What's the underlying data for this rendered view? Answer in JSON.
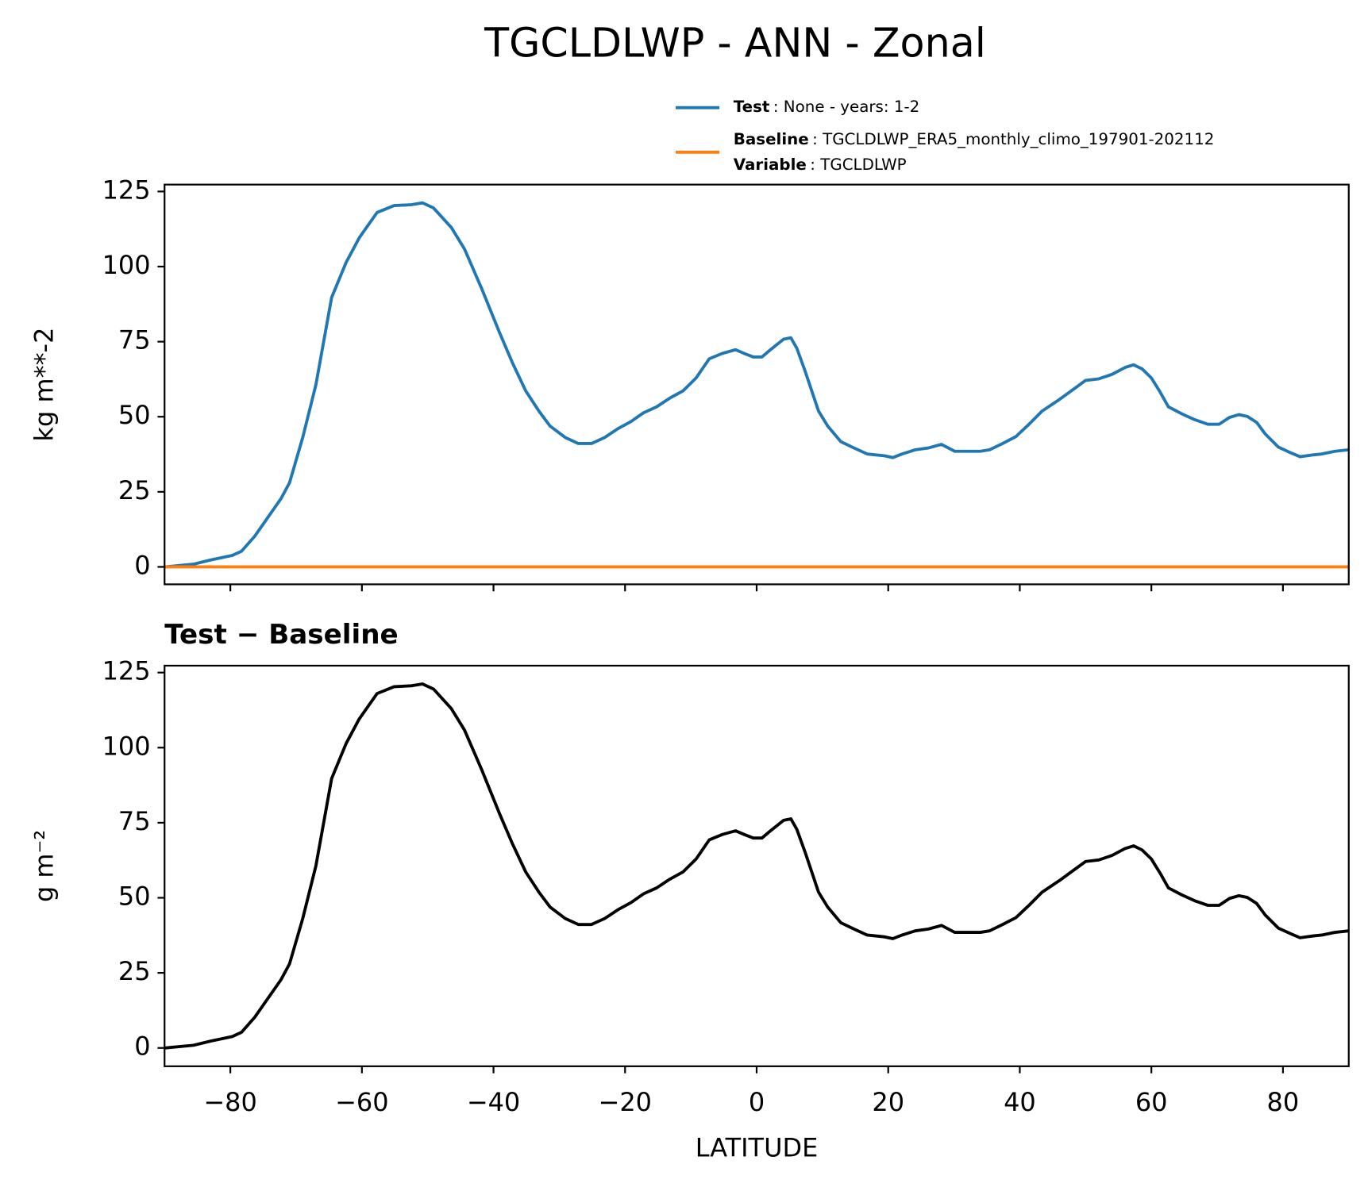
{
  "chart_data": [
    {
      "type": "line",
      "title": "TGCLDLWP - ANN - Zonal",
      "ylabel": "kg m**-2",
      "x": [
        -90,
        -85.6,
        -83,
        -79.7,
        -78.3,
        -76.3,
        -72.3,
        -71,
        -69,
        -67,
        -64.6,
        -62.4,
        -60.4,
        -57.7,
        -55.1,
        -52.5,
        -50.8,
        -49.1,
        -46.4,
        -44.4,
        -41.8,
        -39.1,
        -37.1,
        -35.1,
        -33.1,
        -31.4,
        -29.1,
        -27.1,
        -25.1,
        -23.1,
        -21.1,
        -19.1,
        -17.2,
        -15.2,
        -13.2,
        -11.2,
        -9.2,
        -7.2,
        -5.2,
        -3.2,
        -1.9,
        -0.5,
        0.8,
        2.1,
        4.1,
        5.2,
        6.1,
        7.4,
        9.4,
        10.8,
        12.8,
        14.8,
        16.8,
        18.1,
        19.4,
        20.7,
        22.1,
        24.1,
        26.1,
        28.1,
        30.1,
        32,
        34,
        35.4,
        37.4,
        39.4,
        41.4,
        43.4,
        46,
        48,
        50,
        52,
        54,
        56,
        57.3,
        58.6,
        60,
        61.3,
        62.6,
        64.6,
        66.6,
        68.6,
        70.3,
        71.9,
        73.3,
        74.6,
        76,
        77.3,
        79.3,
        81.3,
        82.6,
        84.6,
        85.9,
        87.9,
        90
      ],
      "series": [
        {
          "name": "Test",
          "description": ": None - years: 1-2",
          "color": "#1f77b4",
          "values": [
            0,
            0.9,
            2.3,
            3.8,
            5.2,
            10.2,
            22.7,
            28,
            43.1,
            60.6,
            89.7,
            101.4,
            109.6,
            118,
            120.3,
            120.6,
            121.2,
            119.5,
            113,
            105.8,
            92.7,
            78.1,
            67.9,
            58.6,
            51.9,
            46.9,
            43.1,
            41.1,
            41.1,
            43.1,
            46,
            48.4,
            51.3,
            53.3,
            56.2,
            58.6,
            62.9,
            69.3,
            71.1,
            72.3,
            71.1,
            69.9,
            69.9,
            72.3,
            75.8,
            76.3,
            72.8,
            65,
            51.9,
            46.9,
            41.7,
            39.6,
            37.6,
            37.3,
            37,
            36.4,
            37.6,
            39,
            39.6,
            40.8,
            38.5,
            38.5,
            38.5,
            39,
            41.1,
            43.4,
            47.5,
            51.9,
            55.7,
            58.9,
            62.1,
            62.6,
            64.1,
            66.4,
            67.3,
            65.9,
            62.9,
            58.3,
            53.3,
            51,
            49,
            47.5,
            47.5,
            49.8,
            50.7,
            50.1,
            48.1,
            44.3,
            39.9,
            37.9,
            36.7,
            37.3,
            37.6,
            38.5,
            39
          ]
        },
        {
          "name": "Baseline",
          "description": ": TGCLDLWP_ERA5_monthly_climo_197901-202112",
          "color": "#ff7f0e",
          "legend_extra": [
            {
              "name": "Variable",
              "description": ": TGCLDLWP"
            }
          ],
          "values": [
            0,
            0,
            0,
            0,
            0,
            0,
            0,
            0,
            0,
            0,
            0,
            0,
            0,
            0,
            0,
            0,
            0,
            0,
            0,
            0,
            0,
            0,
            0,
            0,
            0,
            0,
            0,
            0,
            0,
            0,
            0,
            0,
            0,
            0,
            0,
            0,
            0,
            0,
            0,
            0,
            0,
            0,
            0,
            0,
            0,
            0,
            0,
            0,
            0,
            0,
            0,
            0,
            0,
            0,
            0,
            0,
            0,
            0,
            0,
            0,
            0,
            0,
            0,
            0,
            0,
            0,
            0,
            0,
            0,
            0,
            0,
            0,
            0,
            0,
            0,
            0,
            0,
            0,
            0,
            0,
            0,
            0,
            0,
            0,
            0,
            0,
            0,
            0,
            0,
            0,
            0,
            0,
            0,
            0,
            0
          ]
        }
      ],
      "xlim": [
        -90,
        90
      ],
      "ylim": [
        -5.8,
        127.3
      ],
      "xticks": [
        -80,
        -60,
        -40,
        -20,
        0,
        20,
        40,
        60,
        80
      ],
      "yticks": [
        0,
        25,
        50,
        75,
        100,
        125
      ]
    },
    {
      "type": "line",
      "title": "Test − Baseline",
      "ylabel": "g m⁻²",
      "xlabel": "LATITUDE",
      "x": [
        -90,
        -85.6,
        -83,
        -79.7,
        -78.3,
        -76.3,
        -72.3,
        -71,
        -69,
        -67,
        -64.6,
        -62.4,
        -60.4,
        -57.7,
        -55.1,
        -52.5,
        -50.8,
        -49.1,
        -46.4,
        -44.4,
        -41.8,
        -39.1,
        -37.1,
        -35.1,
        -33.1,
        -31.4,
        -29.1,
        -27.1,
        -25.1,
        -23.1,
        -21.1,
        -19.1,
        -17.2,
        -15.2,
        -13.2,
        -11.2,
        -9.2,
        -7.2,
        -5.2,
        -3.2,
        -1.9,
        -0.5,
        0.8,
        2.1,
        4.1,
        5.2,
        6.1,
        7.4,
        9.4,
        10.8,
        12.8,
        14.8,
        16.8,
        18.1,
        19.4,
        20.7,
        22.1,
        24.1,
        26.1,
        28.1,
        30.1,
        32,
        34,
        35.4,
        37.4,
        39.4,
        41.4,
        43.4,
        46,
        48,
        50,
        52,
        54,
        56,
        57.3,
        58.6,
        60,
        61.3,
        62.6,
        64.6,
        66.6,
        68.6,
        70.3,
        71.9,
        73.3,
        74.6,
        76,
        77.3,
        79.3,
        81.3,
        82.6,
        84.6,
        85.9,
        87.9,
        90
      ],
      "series": [
        {
          "color": "#000000",
          "values": [
            0,
            0.9,
            2.3,
            3.8,
            5.2,
            10.2,
            22.7,
            28,
            43.1,
            60.6,
            89.7,
            101.4,
            109.6,
            118,
            120.3,
            120.6,
            121.2,
            119.5,
            113,
            105.8,
            92.7,
            78.1,
            67.9,
            58.6,
            51.9,
            46.9,
            43.1,
            41.1,
            41.1,
            43.1,
            46,
            48.4,
            51.3,
            53.3,
            56.2,
            58.6,
            62.9,
            69.3,
            71.1,
            72.3,
            71.1,
            69.9,
            69.9,
            72.3,
            75.8,
            76.3,
            72.8,
            65,
            51.9,
            46.9,
            41.7,
            39.6,
            37.6,
            37.3,
            37,
            36.4,
            37.6,
            39,
            39.6,
            40.8,
            38.5,
            38.5,
            38.5,
            39,
            41.1,
            43.4,
            47.5,
            51.9,
            55.7,
            58.9,
            62.1,
            62.6,
            64.1,
            66.4,
            67.3,
            65.9,
            62.9,
            58.3,
            53.3,
            51,
            49,
            47.5,
            47.5,
            49.8,
            50.7,
            50.1,
            48.1,
            44.3,
            39.9,
            37.9,
            36.7,
            37.3,
            37.6,
            38.5,
            39
          ]
        }
      ],
      "xlim": [
        -90,
        90
      ],
      "ylim": [
        -6.1,
        127.3
      ],
      "xticks": [
        {
          "value": -80,
          "label": "−80"
        },
        {
          "value": -60,
          "label": "−60"
        },
        {
          "value": -40,
          "label": "−40"
        },
        {
          "value": -20,
          "label": "−20"
        },
        0,
        20,
        40,
        60,
        80
      ],
      "yticks": [
        0,
        25,
        50,
        75,
        100,
        125
      ]
    }
  ]
}
